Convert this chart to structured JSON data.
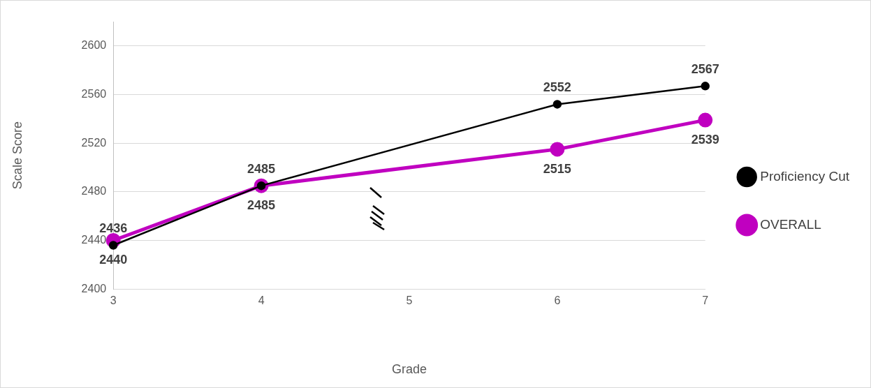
{
  "chart_data": {
    "type": "line",
    "xlabel": "Grade",
    "ylabel": "Scale Score",
    "x": [
      3,
      4,
      6,
      7
    ],
    "series": [
      {
        "name": "OVERALL",
        "color": "#c000c0",
        "values": [
          2440,
          2485,
          2515,
          2539
        ]
      },
      {
        "name": "Proficiency Cut",
        "color": "#000000",
        "values": [
          2436,
          2485,
          2552,
          2567
        ]
      }
    ],
    "xlim": [
      3,
      7
    ],
    "xticks": [
      3,
      4,
      5,
      6,
      7
    ],
    "ylim": [
      2400,
      2620
    ],
    "yticks": [
      2400,
      2440,
      2480,
      2520,
      2560,
      2600
    ],
    "grid": "y",
    "legend": "right",
    "marker": "circle",
    "data_labels": true
  }
}
